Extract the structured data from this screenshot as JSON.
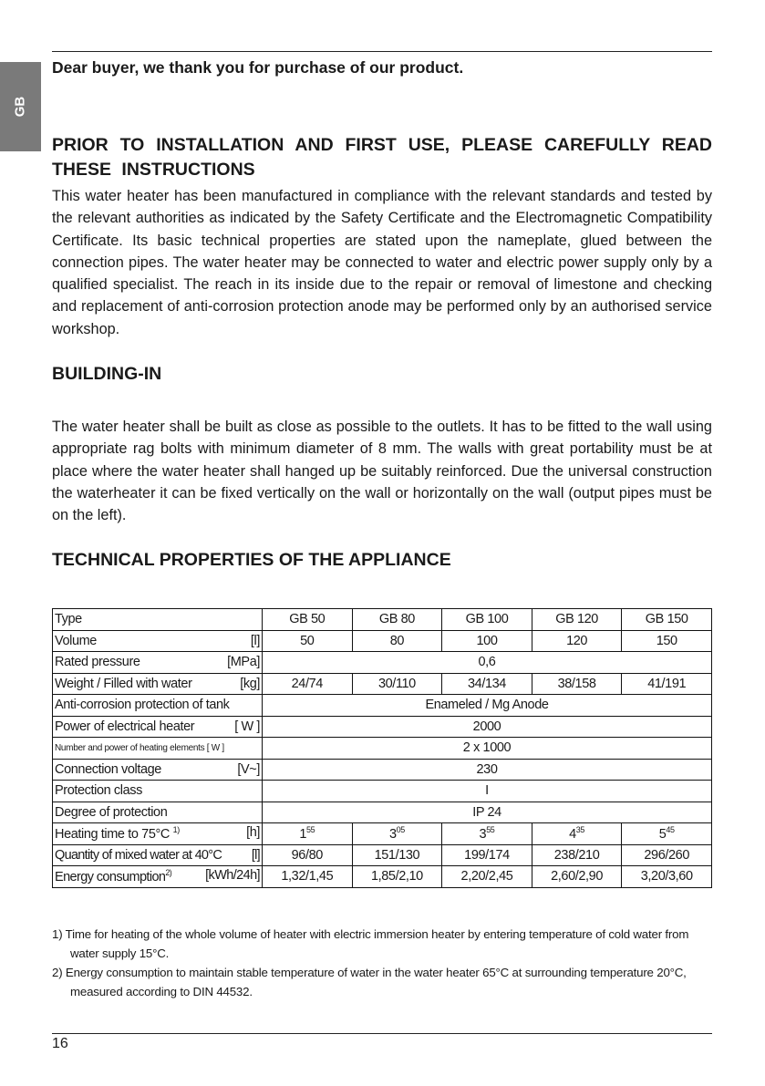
{
  "tab_label": "GB",
  "greeting": "Dear buyer, we thank you for purchase of our product.",
  "heading_main": "PRIOR TO INSTALLATION AND FIRST USE, PLEASE CAREFULLY READ THESE INSTRUCTIONS",
  "intro_paragraph": "This water heater has been manufactured in compliance with the relevant standards and tested by the relevant authorities as indicated by the Safety Certificate and the Electromagnetic Compatibility Certificate. Its basic technical properties are stated upon the nameplate, glued between the connection pipes. The water heater may be connected to water and electric power supply only by a qualified specialist. The reach in its inside due to the repair or removal of limestone and checking and replacement of anti-corrosion protection anode may be performed only by an authorised service workshop.",
  "building_heading": "BUILDING-IN",
  "building_paragraph": "The water heater shall be built as close as possible to the outlets. It has to be fitted to the wall using appropriate rag bolts with minimum diameter of 8 mm. The walls with great portability must be at place where the water heater shall hanged up be suitably reinforced. Due the universal construction the waterheater it can be fixed vertically on the wall or horizontally on the wall (output pipes must be on the left).",
  "tech_heading": "TECHNICAL PROPERTIES OF THE APPLIANCE",
  "table": {
    "type_label": "Type",
    "types": [
      "GB 50",
      "GB 80",
      "GB 100",
      "GB 120",
      "GB 150"
    ],
    "volume": {
      "label": "Volume",
      "unit": "[l]",
      "values": [
        "50",
        "80",
        "100",
        "120",
        "150"
      ]
    },
    "pressure": {
      "label": "Rated pressure",
      "unit": "[MPa]",
      "value": "0,6"
    },
    "weight": {
      "label": "Weight / Filled with water",
      "unit": "[kg]",
      "values": [
        "24/74",
        "30/110",
        "34/134",
        "38/158",
        "41/191"
      ]
    },
    "anticorrosion": {
      "label": "Anti-corrosion protection of tank",
      "value": "Enameled / Mg Anode"
    },
    "power": {
      "label": "Power of electrical heater",
      "unit": "[ W ]",
      "value": "2000"
    },
    "elements": {
      "label": "Number and power of heating elements [ W ]",
      "value": "2 x 1000"
    },
    "voltage": {
      "label": "Connection voltage",
      "unit": "[V~]",
      "value": "230"
    },
    "protection_class": {
      "label": "Protection class",
      "value": "I"
    },
    "degree": {
      "label": "Degree of protection",
      "value": "IP 24"
    },
    "heating_time": {
      "label": "Heating time to 75°C",
      "note": "1)",
      "unit": "[h]",
      "hours": [
        "1",
        "3",
        "3",
        "4",
        "5"
      ],
      "minutes": [
        "55",
        "05",
        "55",
        "35",
        "45"
      ]
    },
    "mixed_water": {
      "label": "Quantity of mixed water at 40°C",
      "unit": "[l]",
      "values": [
        "96/80",
        "151/130",
        "199/174",
        "238/210",
        "296/260"
      ]
    },
    "energy": {
      "label": "Energy consumption",
      "note": "2)",
      "unit": "[kWh/24h]",
      "values": [
        "1,32/1,45",
        "1,85/2,10",
        "2,20/2,45",
        "2,60/2,90",
        "3,20/3,60"
      ]
    }
  },
  "footnotes": [
    "1) Time for heating of the whole volume of heater with electric immersion heater by entering temperature of cold water from water supply 15°C.",
    "2) Energy consumption to maintain stable temperature of water in the water heater 65°C at surrounding temperature 20°C, measured according to DIN 44532."
  ],
  "page_number": "16"
}
